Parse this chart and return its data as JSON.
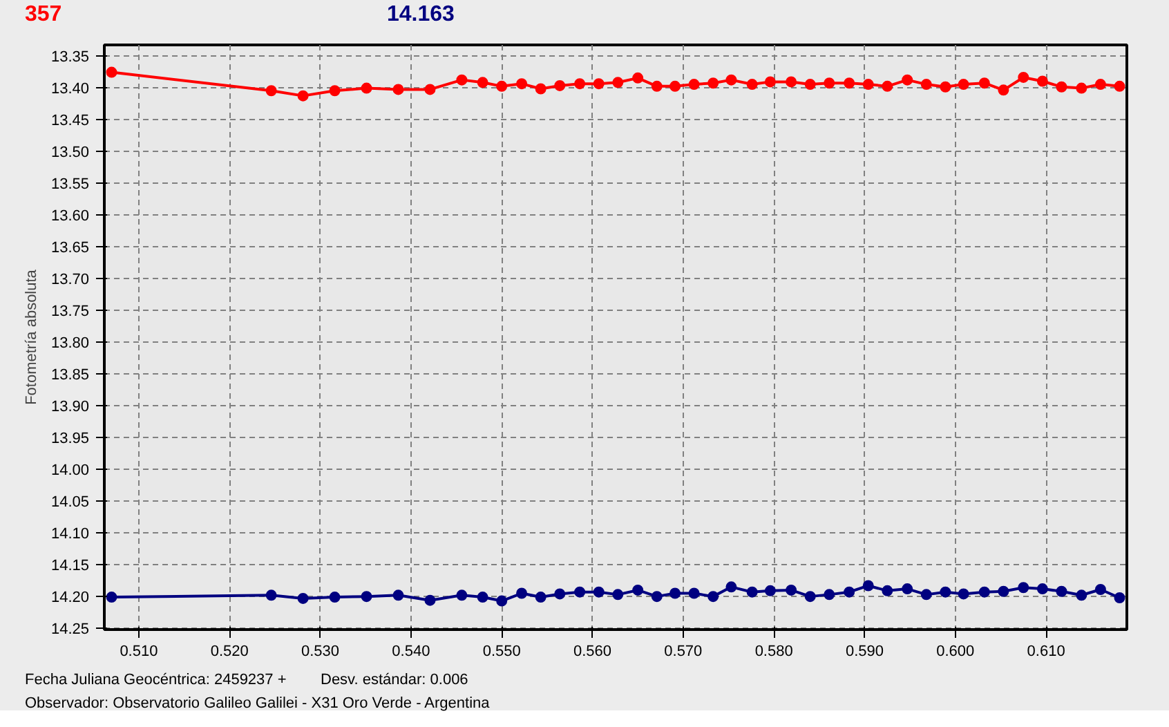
{
  "chart_data": {
    "type": "line",
    "ylabel": "Fotometría absoluta",
    "annotations": [
      "357",
      "14.163",
      "Fecha Juliana Geocéntrica: 2459237 +",
      "Desv. estándar: 0.006",
      "Observador: Observatorio Galileo Galilei - X31 Oro Verde - Argentina"
    ],
    "x": [
      0.507,
      0.5246,
      0.5281,
      0.5316,
      0.5351,
      0.5386,
      0.5421,
      0.5456,
      0.5479,
      0.55,
      0.5522,
      0.5543,
      0.5564,
      0.5586,
      0.5607,
      0.5628,
      0.565,
      0.5671,
      0.5691,
      0.5712,
      0.5733,
      0.5753,
      0.5776,
      0.5796,
      0.5819,
      0.584,
      0.5861,
      0.5883,
      0.5904,
      0.5925,
      0.5947,
      0.5968,
      0.5989,
      0.6009,
      0.6032,
      0.6053,
      0.6075,
      0.6096,
      0.6117,
      0.6139,
      0.616,
      0.6181
    ],
    "series": [
      {
        "color": "#ff0000",
        "values": [
          13.376,
          13.405,
          13.413,
          13.405,
          13.401,
          13.403,
          13.403,
          13.388,
          13.392,
          13.398,
          13.394,
          13.402,
          13.397,
          13.394,
          13.394,
          13.392,
          13.385,
          13.398,
          13.398,
          13.395,
          13.393,
          13.388,
          13.395,
          13.391,
          13.391,
          13.395,
          13.393,
          13.393,
          13.395,
          13.398,
          13.388,
          13.395,
          13.399,
          13.395,
          13.393,
          13.404,
          13.384,
          13.39,
          13.399,
          13.401,
          13.395,
          13.398
        ]
      },
      {
        "color": "#000080",
        "values": [
          14.201,
          14.198,
          14.203,
          14.201,
          14.2,
          14.198,
          14.206,
          14.198,
          14.201,
          14.207,
          14.195,
          14.201,
          14.196,
          14.193,
          14.193,
          14.197,
          14.19,
          14.2,
          14.195,
          14.195,
          14.2,
          14.185,
          14.193,
          14.191,
          14.19,
          14.2,
          14.197,
          14.193,
          14.183,
          14.191,
          14.188,
          14.197,
          14.193,
          14.196,
          14.193,
          14.192,
          14.186,
          14.188,
          14.192,
          14.198,
          14.189,
          14.202
        ]
      }
    ],
    "xlim": [
      0.5062,
      0.6189
    ],
    "ylim": [
      14.252,
      13.333
    ],
    "xticks": [
      {
        "value": 0.51,
        "label": "0.510"
      },
      {
        "value": 0.52,
        "label": "0.520"
      },
      {
        "value": 0.53,
        "label": "0.530"
      },
      {
        "value": 0.54,
        "label": "0.540"
      },
      {
        "value": 0.55,
        "label": "0.550"
      },
      {
        "value": 0.56,
        "label": "0.560"
      },
      {
        "value": 0.57,
        "label": "0.570"
      },
      {
        "value": 0.58,
        "label": "0.580"
      },
      {
        "value": 0.59,
        "label": "0.590"
      },
      {
        "value": 0.6,
        "label": "0.600"
      },
      {
        "value": 0.61,
        "label": "0.610"
      }
    ],
    "yticks": [
      13.35,
      {
        "value": 13.4,
        "label": "13.40"
      },
      13.45,
      {
        "value": 13.5,
        "label": "13.50"
      },
      13.55,
      {
        "value": 13.6,
        "label": "13.60"
      },
      13.65,
      {
        "value": 13.7,
        "label": "13.70"
      },
      13.75,
      {
        "value": 13.8,
        "label": "13.80"
      },
      13.85,
      {
        "value": 13.9,
        "label": "13.90"
      },
      13.95,
      {
        "value": 14.0,
        "label": "14.00"
      },
      14.05,
      {
        "value": 14.1,
        "label": "14.10"
      },
      14.15,
      {
        "value": 14.2,
        "label": "14.20"
      },
      14.25
    ],
    "grid": true,
    "marker": "circle",
    "line_style": "solid"
  }
}
